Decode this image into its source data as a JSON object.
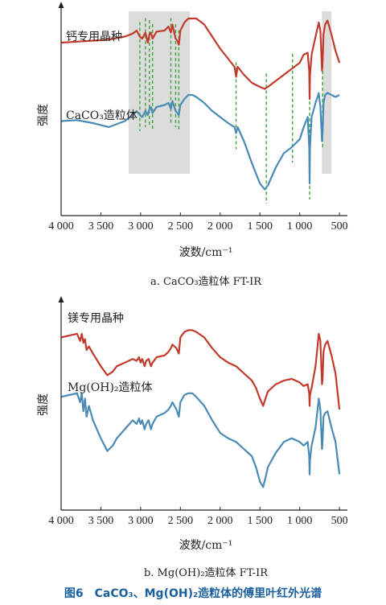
{
  "figure_title": "图6　CaCO₃、Mg(OH)₂造粒体的傅里叶红外光谱",
  "chart_data": [
    {
      "type": "line",
      "caption": "a. CaCO₃造粒体 FT-IR",
      "xlabel": "波数/cm⁻¹",
      "ylabel": "强度",
      "xlim": [
        4000,
        400
      ],
      "x_ticks": [
        4000,
        3500,
        3000,
        2500,
        2000,
        1500,
        1000,
        500
      ],
      "x_tick_labels": [
        "4 000",
        "3 500",
        "3 000",
        "2 500",
        "2 000",
        "1 500",
        "1 000",
        "500"
      ],
      "ylim": [
        0,
        100
      ],
      "highlight_regions": [
        [
          3150,
          2380
        ],
        [
          720,
          600
        ]
      ],
      "marker_lines": [
        3010,
        2940,
        2890,
        2850,
        2620,
        2560,
        2520,
        1800,
        1420,
        1090,
        875,
        712
      ],
      "series": [
        {
          "name": "钙专用晶种",
          "color": "#c23a2b",
          "x": [
            4000,
            3800,
            3600,
            3400,
            3200,
            3100,
            3050,
            3010,
            2980,
            2940,
            2910,
            2890,
            2870,
            2850,
            2800,
            2700,
            2650,
            2620,
            2600,
            2560,
            2540,
            2520,
            2500,
            2450,
            2400,
            2350,
            2300,
            2200,
            2100,
            2000,
            1900,
            1820,
            1800,
            1780,
            1700,
            1600,
            1500,
            1440,
            1400,
            1300,
            1200,
            1100,
            1000,
            950,
            900,
            880,
            875,
            870,
            850,
            800,
            760,
            740,
            720,
            712,
            700,
            680,
            650,
            600,
            550,
            500
          ],
          "y": [
            82,
            82.5,
            83,
            83.5,
            85,
            86.5,
            88,
            85,
            84,
            87,
            82,
            86,
            87,
            84,
            87.5,
            88,
            90,
            87,
            91,
            84,
            83,
            81,
            88,
            92,
            94,
            94,
            94,
            91,
            85,
            79,
            74,
            70,
            65,
            70,
            66,
            62,
            60,
            59,
            60,
            63,
            66,
            69,
            72,
            76,
            77,
            68,
            54,
            66,
            76,
            85,
            92,
            88,
            68,
            72,
            86,
            91,
            93,
            86,
            78,
            72
          ]
        },
        {
          "name": "CaCO₃造粒体",
          "color": "#4a8bb5",
          "x": [
            4000,
            3800,
            3600,
            3400,
            3200,
            3100,
            3050,
            3010,
            2980,
            2940,
            2910,
            2890,
            2870,
            2850,
            2800,
            2700,
            2650,
            2620,
            2600,
            2560,
            2540,
            2520,
            2500,
            2450,
            2400,
            2350,
            2300,
            2200,
            2100,
            2000,
            1900,
            1820,
            1800,
            1780,
            1700,
            1600,
            1500,
            1440,
            1400,
            1300,
            1200,
            1100,
            1000,
            950,
            900,
            880,
            875,
            870,
            850,
            800,
            760,
            740,
            720,
            712,
            700,
            680,
            650,
            600,
            550,
            500
          ],
          "y": [
            43,
            43.5,
            42,
            40,
            43,
            46,
            48,
            46,
            45,
            48,
            46,
            49,
            50,
            47,
            50,
            51,
            52,
            49,
            53,
            48,
            47,
            46,
            51,
            54,
            56,
            56,
            55,
            52,
            48,
            45,
            42,
            40,
            37,
            40,
            33,
            22,
            12,
            9,
            11,
            20,
            27,
            30,
            34,
            40,
            45,
            30,
            12,
            30,
            45,
            52,
            57,
            50,
            33,
            37,
            52,
            56,
            57,
            56,
            55,
            56
          ]
        }
      ]
    },
    {
      "type": "line",
      "caption": "b. Mg(OH)₂造粒体 FT-IR",
      "xlabel": "波数/cm⁻¹",
      "ylabel": "强度",
      "xlim": [
        4000,
        400
      ],
      "x_ticks": [
        4000,
        3500,
        3000,
        2500,
        2000,
        1500,
        1000,
        500
      ],
      "x_tick_labels": [
        "4 000",
        "3 500",
        "3 000",
        "2 500",
        "2 000",
        "1 500",
        "1 000",
        "500"
      ],
      "ylim": [
        0,
        100
      ],
      "series": [
        {
          "name": "镁专用晶种",
          "color": "#c23a2b",
          "x": [
            4000,
            3900,
            3800,
            3760,
            3740,
            3720,
            3700,
            3680,
            3650,
            3600,
            3500,
            3420,
            3350,
            3300,
            3200,
            3100,
            3050,
            3020,
            3000,
            2980,
            2950,
            2930,
            2900,
            2870,
            2850,
            2800,
            2700,
            2650,
            2620,
            2600,
            2550,
            2520,
            2500,
            2450,
            2400,
            2350,
            2300,
            2200,
            2100,
            2000,
            1900,
            1800,
            1700,
            1600,
            1550,
            1500,
            1460,
            1430,
            1400,
            1300,
            1200,
            1100,
            1000,
            950,
            900,
            880,
            875,
            870,
            850,
            800,
            760,
            740,
            720,
            712,
            700,
            680,
            650,
            600,
            550,
            500
          ],
          "y": [
            86,
            87,
            88,
            84,
            88,
            83,
            85,
            79,
            81,
            77,
            70,
            65,
            67,
            70,
            72,
            74,
            73,
            75,
            72,
            74,
            70,
            73,
            74,
            70,
            72,
            75,
            76,
            78,
            80,
            82,
            80,
            77,
            86,
            89,
            90,
            90,
            89,
            86,
            80,
            75,
            72,
            70,
            66,
            62,
            58,
            52,
            48,
            52,
            56,
            60,
            62,
            63,
            61,
            59,
            60,
            55,
            48,
            54,
            58,
            70,
            88,
            84,
            60,
            63,
            78,
            82,
            84,
            76,
            66,
            46
          ]
        },
        {
          "name": "Mg(OH)₂造粒体",
          "color": "#4a8bb5",
          "x": [
            4000,
            3900,
            3800,
            3760,
            3740,
            3720,
            3700,
            3680,
            3650,
            3600,
            3500,
            3420,
            3350,
            3300,
            3200,
            3100,
            3050,
            3020,
            3000,
            2980,
            2950,
            2930,
            2900,
            2870,
            2850,
            2800,
            2700,
            2650,
            2620,
            2600,
            2550,
            2520,
            2500,
            2450,
            2400,
            2350,
            2300,
            2200,
            2100,
            2000,
            1900,
            1800,
            1700,
            1600,
            1550,
            1500,
            1460,
            1430,
            1400,
            1300,
            1200,
            1100,
            1000,
            950,
            900,
            880,
            875,
            870,
            850,
            800,
            760,
            740,
            720,
            712,
            700,
            680,
            650,
            600,
            550,
            500
          ],
          "y": [
            53,
            54,
            55,
            50,
            55,
            45,
            52,
            42,
            48,
            40,
            30,
            23,
            26,
            30,
            35,
            40,
            38,
            41,
            38,
            40,
            35,
            38,
            40,
            35,
            38,
            42,
            44,
            46,
            48,
            50,
            46,
            42,
            50,
            54,
            55,
            55,
            53,
            48,
            40,
            33,
            30,
            28,
            24,
            20,
            14,
            6,
            3,
            8,
            14,
            22,
            28,
            30,
            28,
            26,
            28,
            20,
            10,
            18,
            26,
            36,
            52,
            46,
            24,
            28,
            42,
            44,
            45,
            36,
            28,
            10
          ]
        }
      ]
    }
  ]
}
